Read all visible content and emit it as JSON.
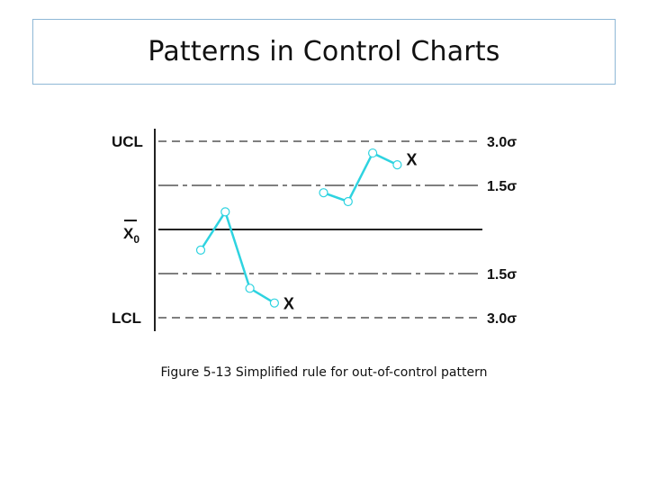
{
  "title": "Patterns in Control Charts",
  "caption": "Figure 5-13 Simplified rule for out-of-control pattern",
  "chart_data": {
    "type": "line",
    "left_labels": {
      "ucl": "UCL",
      "center": "X",
      "center_sub": "0",
      "lcl": "LCL"
    },
    "right_labels": {
      "ucl": "3.0σ",
      "upper_warn": "1.5σ",
      "lower_warn": "1.5σ",
      "lcl": "3.0σ"
    },
    "limits_sigma": {
      "ucl": 3.0,
      "upper_warn": 1.5,
      "center": 0,
      "lower_warn": -1.5,
      "lcl": -3.0
    },
    "ylim": [
      -3.0,
      3.0
    ],
    "series": [
      {
        "points": [
          {
            "x": 1,
            "y": -0.7
          },
          {
            "x": 2,
            "y": 0.6
          },
          {
            "x": 3,
            "y": -2.0
          },
          {
            "x": 4,
            "y": -2.5
          }
        ]
      },
      {
        "points": [
          {
            "x": 6,
            "y": 1.25
          },
          {
            "x": 7,
            "y": 0.95
          },
          {
            "x": 8,
            "y": 2.6
          },
          {
            "x": 9,
            "y": 2.2
          }
        ]
      }
    ],
    "out_of_control_marker": "X",
    "out_of_control_points": [
      {
        "x": 4.4,
        "y": -2.5
      },
      {
        "x": 9.4,
        "y": 2.4
      }
    ],
    "colors": {
      "series": "#2ed3e0",
      "limits": "#555555",
      "axis": "#222222",
      "text": "#111111",
      "title_border": "#8fb8d6"
    }
  }
}
